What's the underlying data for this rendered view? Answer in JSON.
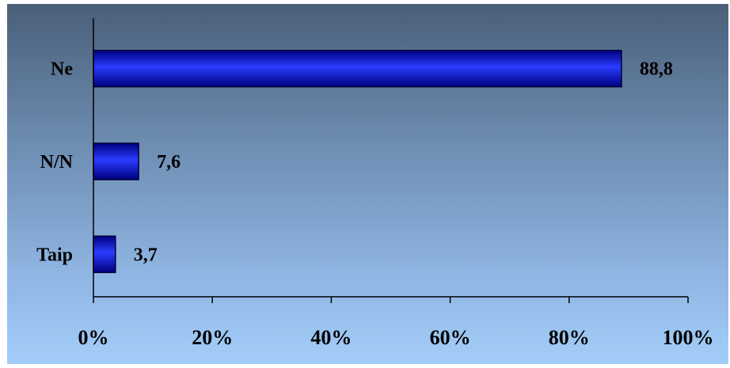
{
  "chart_data": {
    "type": "bar",
    "orientation": "horizontal",
    "categories": [
      "Ne",
      "N/N",
      "Taip"
    ],
    "values": [
      88.8,
      7.6,
      3.7
    ],
    "value_labels": [
      "88,8",
      "7,6",
      "3,7"
    ],
    "xlim": [
      0,
      100
    ],
    "x_ticks": [
      0,
      20,
      40,
      60,
      80,
      100
    ],
    "x_tick_labels": [
      "0%",
      "20%",
      "40%",
      "60%",
      "80%",
      "100%"
    ],
    "title": "",
    "xlabel": "",
    "ylabel": "",
    "grid": false,
    "colors": {
      "bar_light": "#2a3cff",
      "bar_dark": "#000080",
      "bar_outline": "#000033",
      "background_top": "#4a5f79",
      "background_bottom": "#a3cdf8"
    }
  }
}
